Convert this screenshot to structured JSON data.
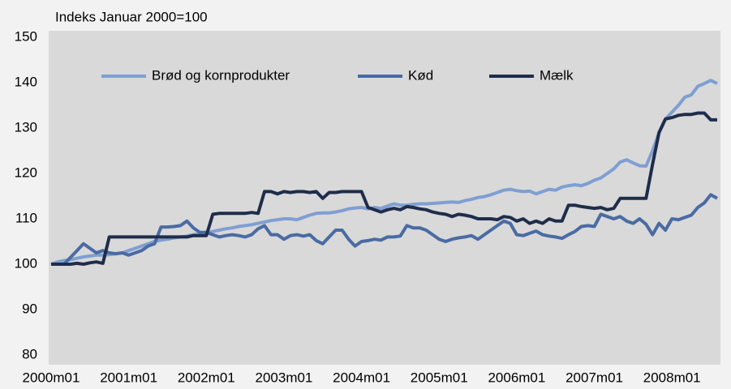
{
  "chart_data": {
    "type": "line",
    "ylabel": "Indeks Januar 2000=100",
    "categories": [
      "2000m01",
      null,
      null,
      null,
      null,
      null,
      null,
      null,
      null,
      null,
      null,
      null,
      "2001m01",
      null,
      null,
      null,
      null,
      null,
      null,
      null,
      null,
      null,
      null,
      null,
      "2002m01",
      null,
      null,
      null,
      null,
      null,
      null,
      null,
      null,
      null,
      null,
      null,
      "2003m01",
      null,
      null,
      null,
      null,
      null,
      null,
      null,
      null,
      null,
      null,
      null,
      "2004m01",
      null,
      null,
      null,
      null,
      null,
      null,
      null,
      null,
      null,
      null,
      null,
      "2005m01",
      null,
      null,
      null,
      null,
      null,
      null,
      null,
      null,
      null,
      null,
      null,
      "2006m01",
      null,
      null,
      null,
      null,
      null,
      null,
      null,
      null,
      null,
      null,
      null,
      "2007m01",
      null,
      null,
      null,
      null,
      null,
      null,
      null,
      null,
      null,
      null,
      null,
      "2008m01",
      null,
      null,
      null,
      null,
      null,
      null,
      null
    ],
    "series": [
      {
        "name": "Brød og kornprodukter",
        "color": "#7f9fd2",
        "values": [
          100,
          100.5,
          100.8,
          101,
          101.3,
          101.6,
          101.8,
          102,
          102,
          102.1,
          102.3,
          102.5,
          103,
          103.5,
          104,
          104.5,
          105,
          105.3,
          105.5,
          105.8,
          106,
          106.2,
          106.5,
          106.7,
          107,
          107.2,
          107.5,
          107.8,
          108,
          108.3,
          108.5,
          108.7,
          109,
          109.3,
          109.6,
          109.8,
          110,
          110,
          109.8,
          110.3,
          110.8,
          111.2,
          111.3,
          111.3,
          111.5,
          111.8,
          112.2,
          112.4,
          112.5,
          112.2,
          112.5,
          112.3,
          112.8,
          113.3,
          113,
          113,
          113.2,
          113.3,
          113.3,
          113.4,
          113.5,
          113.6,
          113.7,
          113.6,
          114,
          114.3,
          114.7,
          114.9,
          115.3,
          115.8,
          116.3,
          116.5,
          116.2,
          116,
          116.1,
          115.5,
          116,
          116.5,
          116.3,
          117,
          117.3,
          117.5,
          117.3,
          117.8,
          118.5,
          119,
          120,
          121,
          122.5,
          123,
          122.3,
          121.7,
          121.6,
          125,
          129,
          132,
          133.5,
          135,
          136.8,
          137.3,
          139.2,
          139.8,
          140.5,
          139.8
        ]
      },
      {
        "name": "Kød",
        "color": "#4a6ba3",
        "values": [
          100,
          100,
          100,
          101.5,
          103,
          104.5,
          103.5,
          102.5,
          103,
          102.5,
          102.3,
          102.5,
          102,
          102.5,
          103,
          104,
          104.5,
          108.2,
          108.2,
          108.3,
          108.5,
          109.5,
          108,
          107,
          107,
          106.5,
          106,
          106.3,
          106.5,
          106.3,
          106,
          106.5,
          107.8,
          108.5,
          106.5,
          106.5,
          105.5,
          106.3,
          106.5,
          106.2,
          106.5,
          105.2,
          104.5,
          106,
          107.5,
          107.5,
          105.5,
          104,
          105,
          105.2,
          105.5,
          105.3,
          106,
          106,
          106.2,
          108.5,
          108,
          108,
          107.5,
          106.5,
          105.5,
          105,
          105.5,
          105.8,
          106,
          106.3,
          105.5,
          106.5,
          107.5,
          108.5,
          109.5,
          109,
          106.5,
          106.3,
          106.8,
          107.3,
          106.5,
          106.2,
          106,
          105.7,
          106.5,
          107.2,
          108.3,
          108.5,
          108.3,
          111,
          110.5,
          110,
          110.5,
          109.5,
          109,
          110,
          108.8,
          106.5,
          109,
          107.5,
          110,
          109.8,
          110.3,
          110.8,
          112.5,
          113.5,
          115.3,
          114.5
        ]
      },
      {
        "name": "Mælk",
        "color": "#1f2d4b",
        "values": [
          100,
          100,
          100,
          100,
          100.2,
          100,
          100.3,
          100.5,
          100.2,
          106,
          106,
          106,
          106,
          106,
          106,
          106,
          106,
          106,
          106,
          106,
          106,
          106,
          106.3,
          106.3,
          106.3,
          111,
          111.2,
          111.2,
          111.2,
          111.2,
          111.2,
          111.4,
          111.2,
          116,
          116,
          115.5,
          116,
          115.8,
          116,
          116,
          115.8,
          116,
          114.5,
          115.8,
          115.8,
          116,
          116,
          116,
          116,
          112.5,
          112,
          111.5,
          112,
          112.3,
          112,
          112.7,
          112.5,
          112.2,
          112,
          111.5,
          111.2,
          111,
          110.5,
          111,
          110.8,
          110.5,
          110,
          110,
          110,
          109.8,
          110.5,
          110.3,
          109.5,
          110,
          109,
          109.5,
          109,
          110,
          109.5,
          109.5,
          113,
          113,
          112.7,
          112.5,
          112.3,
          112.5,
          112,
          112.3,
          114.5,
          114.5,
          114.5,
          114.5,
          114.5,
          122,
          129,
          132,
          132.3,
          132.8,
          133,
          133,
          133.3,
          133.3,
          131.8,
          131.8
        ]
      }
    ],
    "ylim": [
      80,
      150
    ],
    "yticks": [
      80,
      90,
      100,
      110,
      120,
      130,
      140,
      150
    ],
    "legend": "top",
    "grid": false
  }
}
